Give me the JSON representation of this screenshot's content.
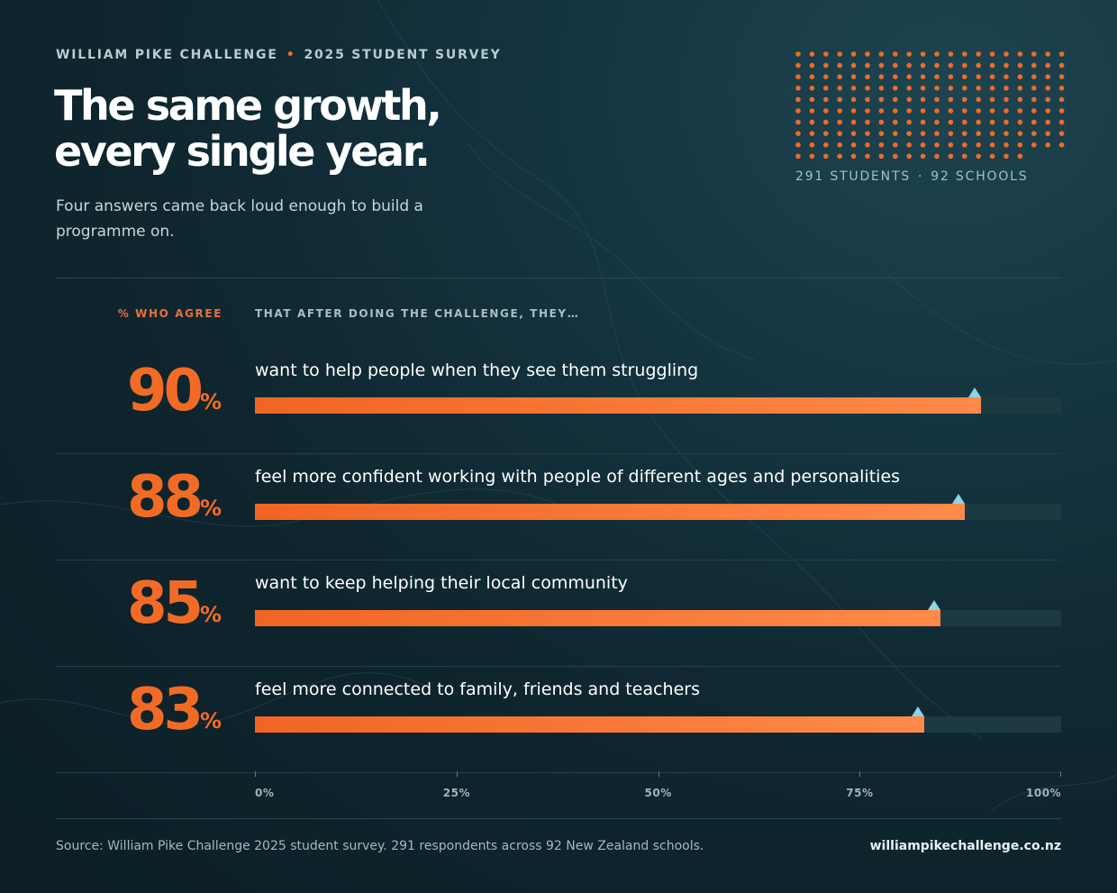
{
  "header": {
    "org": "WILLIAM PIKE CHALLENGE",
    "separator": "•",
    "survey": "2025 STUDENT SURVEY",
    "title_line1": "The same growth,",
    "title_line2": "every single year.",
    "subtitle": "Four answers came back loud enough to build a programme on."
  },
  "stats": {
    "students": "291 STUDENTS",
    "separator": "·",
    "schools": "92 SCHOOLS"
  },
  "dot_grid": {
    "rows": 10,
    "cols": 20,
    "color": "#f26b26"
  },
  "columns": {
    "left": "% WHO AGREE",
    "right": "THAT AFTER DOING THE CHALLENGE, THEY…"
  },
  "chart_data": {
    "type": "bar",
    "orientation": "horizontal",
    "categories": [
      "want to help people when they see them struggling",
      "feel more confident working with people of different ages and personalities",
      "want to keep helping their local community",
      "feel more connected to family, friends and teachers"
    ],
    "values": [
      90,
      88,
      85,
      83
    ],
    "value_labels": [
      "90",
      "88",
      "85",
      "83"
    ],
    "unit": "%",
    "xlim": [
      0,
      100
    ],
    "ticks": [
      0,
      25,
      50,
      75,
      100
    ],
    "tick_labels": [
      "0%",
      "25%",
      "50%",
      "75%",
      "100%"
    ],
    "grid": false,
    "colors": {
      "bar": "#f26b26",
      "track": "#1d3a43",
      "marker": "#8fd3e4"
    }
  },
  "footer": {
    "source": "Source: William Pike Challenge 2025 student survey. 291 respondents across 92 New Zealand schools.",
    "url": "williampikechallenge.co.nz"
  },
  "colors": {
    "accent": "#f26b26",
    "background": "#0f2129"
  }
}
